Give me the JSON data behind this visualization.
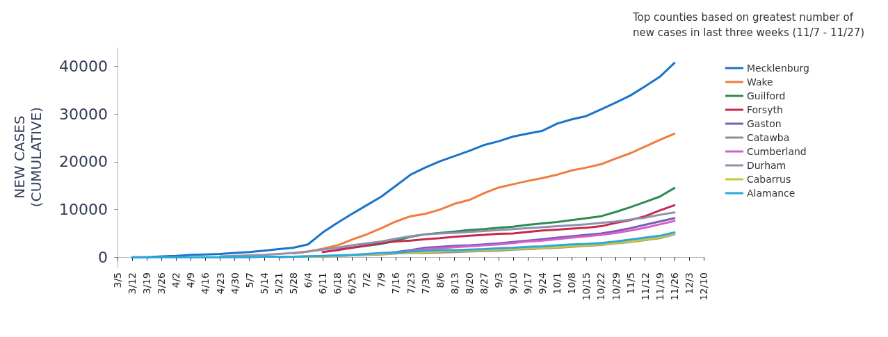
{
  "chart_data": {
    "type": "line",
    "legend_title": "Top counties based on greatest number of new cases in last three weeks (11/7 - 11/27)",
    "ylabel": "NEW CASES\n(CUMULATIVE)",
    "categories": [
      "3/5",
      "3/12",
      "3/19",
      "3/26",
      "4/2",
      "4/9",
      "4/16",
      "4/23",
      "4/30",
      "5/7",
      "5/14",
      "5/21",
      "5/28",
      "6/4",
      "6/11",
      "6/18",
      "6/25",
      "7/2",
      "7/9",
      "7/16",
      "7/23",
      "7/30",
      "8/6",
      "8/13",
      "8/20",
      "8/27",
      "9/3",
      "9/10",
      "9/17",
      "9/24",
      "10/1",
      "10/8",
      "10/15",
      "10/22",
      "10/29",
      "11/5",
      "11/12",
      "11/19",
      "11/26",
      "12/3",
      "12/10"
    ],
    "ylim": [
      -2000,
      44000
    ],
    "yticks": [
      0,
      10000,
      20000,
      30000,
      40000
    ],
    "legend": "right",
    "marker": "none",
    "line_style": "solid",
    "series": [
      {
        "name": "Mecklenburg",
        "color": "#1a73c8",
        "values": [
          null,
          0,
          0,
          200,
          300,
          500,
          600,
          700,
          900,
          1100,
          1400,
          1700,
          2000,
          2700,
          5200,
          7200,
          9100,
          10900,
          12700,
          15000,
          17300,
          18800,
          20100,
          21200,
          22300,
          23500,
          24300,
          25300,
          25900,
          26500,
          28000,
          28900,
          29600,
          31000,
          32400,
          33900,
          35800,
          37800,
          40700,
          null,
          null
        ]
      },
      {
        "name": "Wake",
        "color": "#f07b3f",
        "values": [
          null,
          null,
          null,
          null,
          null,
          null,
          null,
          null,
          null,
          null,
          null,
          null,
          800,
          1200,
          1800,
          2500,
          3700,
          4800,
          6100,
          7500,
          8600,
          9100,
          10000,
          11200,
          12000,
          13400,
          14600,
          15300,
          16000,
          16600,
          17300,
          18200,
          18800,
          19500,
          20700,
          21800,
          23200,
          24600,
          25900,
          null,
          null
        ]
      },
      {
        "name": "Guilford",
        "color": "#2e8b4f",
        "values": [
          null,
          null,
          null,
          null,
          null,
          null,
          null,
          null,
          null,
          null,
          null,
          null,
          null,
          null,
          null,
          1600,
          2000,
          2400,
          2800,
          3500,
          4300,
          4800,
          5100,
          5400,
          5700,
          5900,
          6200,
          6400,
          6800,
          7100,
          7400,
          7800,
          8200,
          8600,
          9500,
          10500,
          11600,
          12700,
          14500,
          null,
          null
        ]
      },
      {
        "name": "Forsyth",
        "color": "#c8294a",
        "values": [
          null,
          null,
          null,
          null,
          null,
          null,
          null,
          null,
          null,
          null,
          null,
          null,
          null,
          null,
          1100,
          1500,
          2000,
          2500,
          3000,
          3300,
          3500,
          3800,
          4000,
          4300,
          4500,
          4700,
          4900,
          5000,
          5300,
          5600,
          5800,
          6000,
          6200,
          6500,
          7200,
          7800,
          8600,
          9800,
          10900,
          null,
          null
        ]
      },
      {
        "name": "Gaston",
        "color": "#7a5cb8",
        "values": [
          null,
          null,
          null,
          null,
          null,
          null,
          null,
          null,
          null,
          null,
          null,
          100,
          100,
          200,
          200,
          300,
          400,
          600,
          800,
          1100,
          1500,
          2000,
          2200,
          2400,
          2500,
          2700,
          2900,
          3200,
          3500,
          3800,
          4100,
          4400,
          4700,
          5000,
          5500,
          6100,
          6800,
          7500,
          8200,
          null,
          null
        ]
      },
      {
        "name": "Catawba",
        "color": "#9a8a8a",
        "values": [
          null,
          null,
          null,
          null,
          null,
          null,
          null,
          null,
          null,
          null,
          null,
          0,
          100,
          100,
          200,
          300,
          400,
          500,
          600,
          800,
          900,
          900,
          1000,
          1100,
          1200,
          1300,
          1400,
          1600,
          1700,
          1900,
          2000,
          2200,
          2400,
          2600,
          2900,
          3200,
          3600,
          4000,
          4800,
          null,
          null
        ]
      },
      {
        "name": "Cumberland",
        "color": "#d65fc8",
        "values": [
          null,
          null,
          null,
          null,
          null,
          null,
          null,
          null,
          null,
          null,
          null,
          null,
          null,
          null,
          null,
          null,
          400,
          500,
          700,
          1000,
          1300,
          1700,
          1900,
          2100,
          2300,
          2500,
          2700,
          3000,
          3300,
          3500,
          3800,
          4100,
          4400,
          4700,
          5100,
          5600,
          6200,
          6900,
          7600,
          null,
          null
        ]
      },
      {
        "name": "Durham",
        "color": "#8e90b0",
        "values": [
          null,
          null,
          null,
          null,
          null,
          null,
          null,
          200,
          300,
          400,
          500,
          700,
          900,
          1200,
          1600,
          2000,
          2500,
          2900,
          3300,
          3900,
          4400,
          4800,
          5000,
          5100,
          5300,
          5500,
          5700,
          5900,
          6100,
          6300,
          6500,
          6700,
          6900,
          7200,
          7500,
          7900,
          8300,
          8900,
          9400,
          null,
          null
        ]
      },
      {
        "name": "Cabarrus",
        "color": "#c8c83a",
        "values": [
          null,
          null,
          null,
          null,
          null,
          null,
          null,
          null,
          null,
          null,
          null,
          100,
          100,
          100,
          200,
          300,
          400,
          600,
          700,
          900,
          1000,
          1100,
          1200,
          1300,
          1400,
          1500,
          1600,
          1700,
          1900,
          2000,
          2100,
          2300,
          2500,
          2700,
          3000,
          3300,
          3700,
          4100,
          4900,
          null,
          null
        ]
      },
      {
        "name": "Alamance",
        "color": "#2aa8dc",
        "values": [
          null,
          0,
          0,
          0,
          0,
          0,
          0,
          0,
          0,
          0,
          100,
          100,
          100,
          200,
          300,
          400,
          500,
          700,
          900,
          1000,
          1200,
          1400,
          1500,
          1500,
          1600,
          1700,
          1900,
          2000,
          2200,
          2300,
          2500,
          2700,
          2800,
          3000,
          3300,
          3700,
          4100,
          4500,
          5200,
          null,
          null
        ]
      }
    ]
  }
}
